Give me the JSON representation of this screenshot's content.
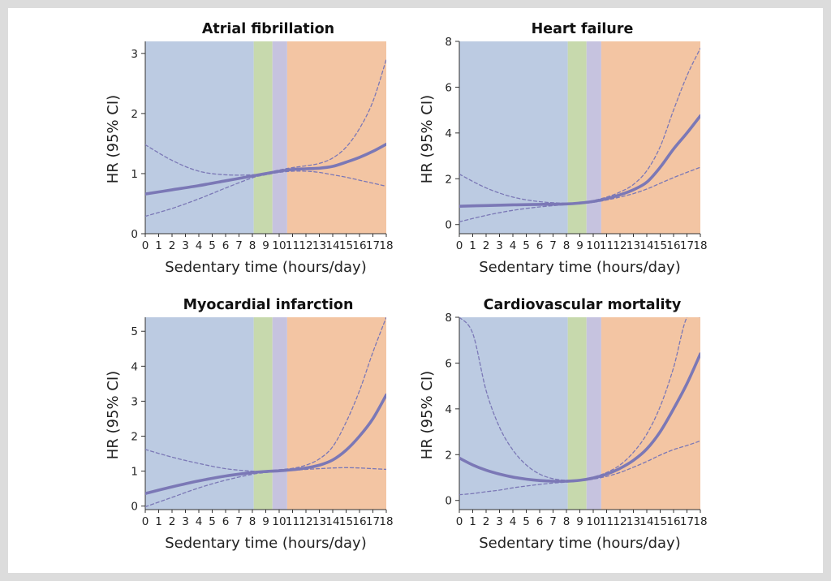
{
  "colors": {
    "zone_low": "#bccbe2",
    "zone_green": "#c7d9ad",
    "zone_purple": "#c6c3df",
    "zone_high": "#f3c5a3",
    "line": "#7b78b6"
  },
  "chart_data": [
    {
      "type": "line",
      "title": "Atrial fibrillation",
      "xlabel": "Sedentary time (hours/day)",
      "ylabel": "HR (95% CI)",
      "xlim": [
        0,
        18
      ],
      "ylim": [
        0,
        3.2
      ],
      "xticks": [
        "0",
        "1",
        "2",
        "3",
        "4",
        "5",
        "6",
        "7",
        "8",
        "9",
        "10",
        "11",
        "12",
        "13",
        "14",
        "15",
        "16",
        "17",
        "18"
      ],
      "yticks": [
        "0",
        "1",
        "2",
        "3"
      ],
      "zones": [
        {
          "from": 0,
          "to": 8.1,
          "color": "#bccbe2"
        },
        {
          "from": 8.1,
          "to": 9.5,
          "color": "#c7d9ad"
        },
        {
          "from": 9.5,
          "to": 10.6,
          "color": "#c6c3df"
        },
        {
          "from": 10.6,
          "to": 18,
          "color": "#f3c5a3"
        }
      ],
      "x": [
        0,
        2,
        4,
        6,
        8,
        9,
        10,
        11,
        12,
        13,
        14,
        15,
        16,
        17,
        18
      ],
      "series": [
        {
          "role": "estimate",
          "values": [
            0.66,
            0.73,
            0.8,
            0.88,
            0.96,
            1.0,
            1.04,
            1.07,
            1.08,
            1.09,
            1.12,
            1.19,
            1.27,
            1.37,
            1.49
          ]
        },
        {
          "role": "upper",
          "values": [
            1.48,
            1.22,
            1.04,
            0.98,
            0.98,
            1.01,
            1.06,
            1.1,
            1.13,
            1.17,
            1.26,
            1.44,
            1.75,
            2.2,
            2.9
          ]
        },
        {
          "role": "lower",
          "values": [
            0.29,
            0.42,
            0.58,
            0.76,
            0.93,
            0.98,
            1.02,
            1.04,
            1.04,
            1.02,
            0.98,
            0.94,
            0.89,
            0.84,
            0.79
          ]
        }
      ]
    },
    {
      "type": "line",
      "title": "Heart failure",
      "xlabel": "Sedentary time (hours/day)",
      "ylabel": "HR (95% CI)",
      "xlim": [
        0,
        18
      ],
      "ylim": [
        -0.4,
        8
      ],
      "xticks": [
        "0",
        "1",
        "2",
        "3",
        "4",
        "5",
        "6",
        "7",
        "8",
        "9",
        "10",
        "11",
        "12",
        "13",
        "14",
        "15",
        "16",
        "17",
        "18"
      ],
      "yticks": [
        "0",
        "2",
        "4",
        "6",
        "8"
      ],
      "zones": [
        {
          "from": 0,
          "to": 8.1,
          "color": "#bccbe2"
        },
        {
          "from": 8.1,
          "to": 9.5,
          "color": "#c7d9ad"
        },
        {
          "from": 9.5,
          "to": 10.6,
          "color": "#c6c3df"
        },
        {
          "from": 10.6,
          "to": 18,
          "color": "#f3c5a3"
        }
      ],
      "x": [
        0,
        2,
        4,
        6,
        8,
        9,
        10,
        11,
        12,
        13,
        14,
        15,
        16,
        17,
        18
      ],
      "series": [
        {
          "role": "estimate",
          "values": [
            0.8,
            0.83,
            0.86,
            0.88,
            0.9,
            0.94,
            1.01,
            1.13,
            1.3,
            1.52,
            1.85,
            2.5,
            3.3,
            4.0,
            4.75
          ]
        },
        {
          "role": "upper",
          "values": [
            2.2,
            1.6,
            1.2,
            1.0,
            0.93,
            0.97,
            1.05,
            1.2,
            1.42,
            1.75,
            2.35,
            3.4,
            5.0,
            6.5,
            7.7
          ]
        },
        {
          "role": "lower",
          "values": [
            0.12,
            0.4,
            0.62,
            0.77,
            0.87,
            0.91,
            0.97,
            1.07,
            1.2,
            1.35,
            1.55,
            1.8,
            2.05,
            2.28,
            2.5
          ]
        }
      ]
    },
    {
      "type": "line",
      "title": "Myocardial infarction",
      "xlabel": "Sedentary time (hours/day)",
      "ylabel": "HR (95% CI)",
      "xlim": [
        0,
        18
      ],
      "ylim": [
        -0.1,
        5.4
      ],
      "xticks": [
        "0",
        "1",
        "2",
        "3",
        "4",
        "5",
        "6",
        "7",
        "8",
        "9",
        "10",
        "11",
        "12",
        "13",
        "14",
        "15",
        "16",
        "17",
        "18"
      ],
      "yticks": [
        "0",
        "1",
        "2",
        "3",
        "4",
        "5"
      ],
      "zones": [
        {
          "from": 0,
          "to": 8.1,
          "color": "#bccbe2"
        },
        {
          "from": 8.1,
          "to": 9.5,
          "color": "#c7d9ad"
        },
        {
          "from": 9.5,
          "to": 10.6,
          "color": "#c6c3df"
        },
        {
          "from": 10.6,
          "to": 18,
          "color": "#f3c5a3"
        }
      ],
      "x": [
        0,
        2,
        4,
        6,
        8,
        9,
        10,
        11,
        12,
        13,
        14,
        15,
        16,
        17,
        18
      ],
      "series": [
        {
          "role": "estimate",
          "values": [
            0.36,
            0.55,
            0.72,
            0.86,
            0.96,
            0.99,
            1.01,
            1.04,
            1.09,
            1.17,
            1.32,
            1.6,
            2.0,
            2.5,
            3.18
          ]
        },
        {
          "role": "upper",
          "values": [
            1.62,
            1.4,
            1.22,
            1.07,
            1.0,
            1.01,
            1.04,
            1.08,
            1.17,
            1.35,
            1.7,
            2.4,
            3.3,
            4.4,
            5.4
          ]
        },
        {
          "role": "lower",
          "values": [
            -0.02,
            0.25,
            0.52,
            0.74,
            0.91,
            0.96,
            0.99,
            1.02,
            1.05,
            1.07,
            1.09,
            1.1,
            1.09,
            1.07,
            1.05
          ]
        }
      ]
    },
    {
      "type": "line",
      "title": "Cardiovascular mortality",
      "xlabel": "Sedentary time (hours/day)",
      "ylabel": "HR (95% CI)",
      "xlim": [
        0,
        18
      ],
      "ylim": [
        -0.4,
        8
      ],
      "xticks": [
        "0",
        "1",
        "2",
        "3",
        "4",
        "5",
        "6",
        "7",
        "8",
        "9",
        "10",
        "11",
        "12",
        "13",
        "14",
        "15",
        "16",
        "17",
        "18"
      ],
      "yticks": [
        "0",
        "2",
        "4",
        "6",
        "8"
      ],
      "zones": [
        {
          "from": 0,
          "to": 8.1,
          "color": "#bccbe2"
        },
        {
          "from": 8.1,
          "to": 9.5,
          "color": "#c7d9ad"
        },
        {
          "from": 9.5,
          "to": 10.6,
          "color": "#c6c3df"
        },
        {
          "from": 10.6,
          "to": 18,
          "color": "#f3c5a3"
        }
      ],
      "x": [
        0,
        1,
        2,
        3,
        4,
        5,
        6,
        7,
        8,
        9,
        10,
        11,
        12,
        13,
        14,
        15,
        16,
        17,
        18
      ],
      "series": [
        {
          "role": "estimate",
          "values": [
            1.85,
            1.55,
            1.32,
            1.15,
            1.02,
            0.93,
            0.87,
            0.84,
            0.84,
            0.88,
            0.98,
            1.15,
            1.4,
            1.75,
            2.25,
            3.0,
            4.0,
            5.1,
            6.4
          ]
        },
        {
          "role": "upper",
          "values": [
            8.0,
            7.3,
            4.8,
            3.2,
            2.2,
            1.55,
            1.15,
            0.95,
            0.88,
            0.9,
            1.02,
            1.22,
            1.55,
            2.1,
            2.9,
            4.1,
            5.8,
            8.0,
            8.0
          ]
        },
        {
          "role": "lower",
          "values": [
            0.25,
            0.3,
            0.38,
            0.45,
            0.55,
            0.63,
            0.7,
            0.76,
            0.8,
            0.85,
            0.93,
            1.05,
            1.22,
            1.45,
            1.7,
            1.98,
            2.22,
            2.4,
            2.6
          ]
        }
      ]
    }
  ]
}
